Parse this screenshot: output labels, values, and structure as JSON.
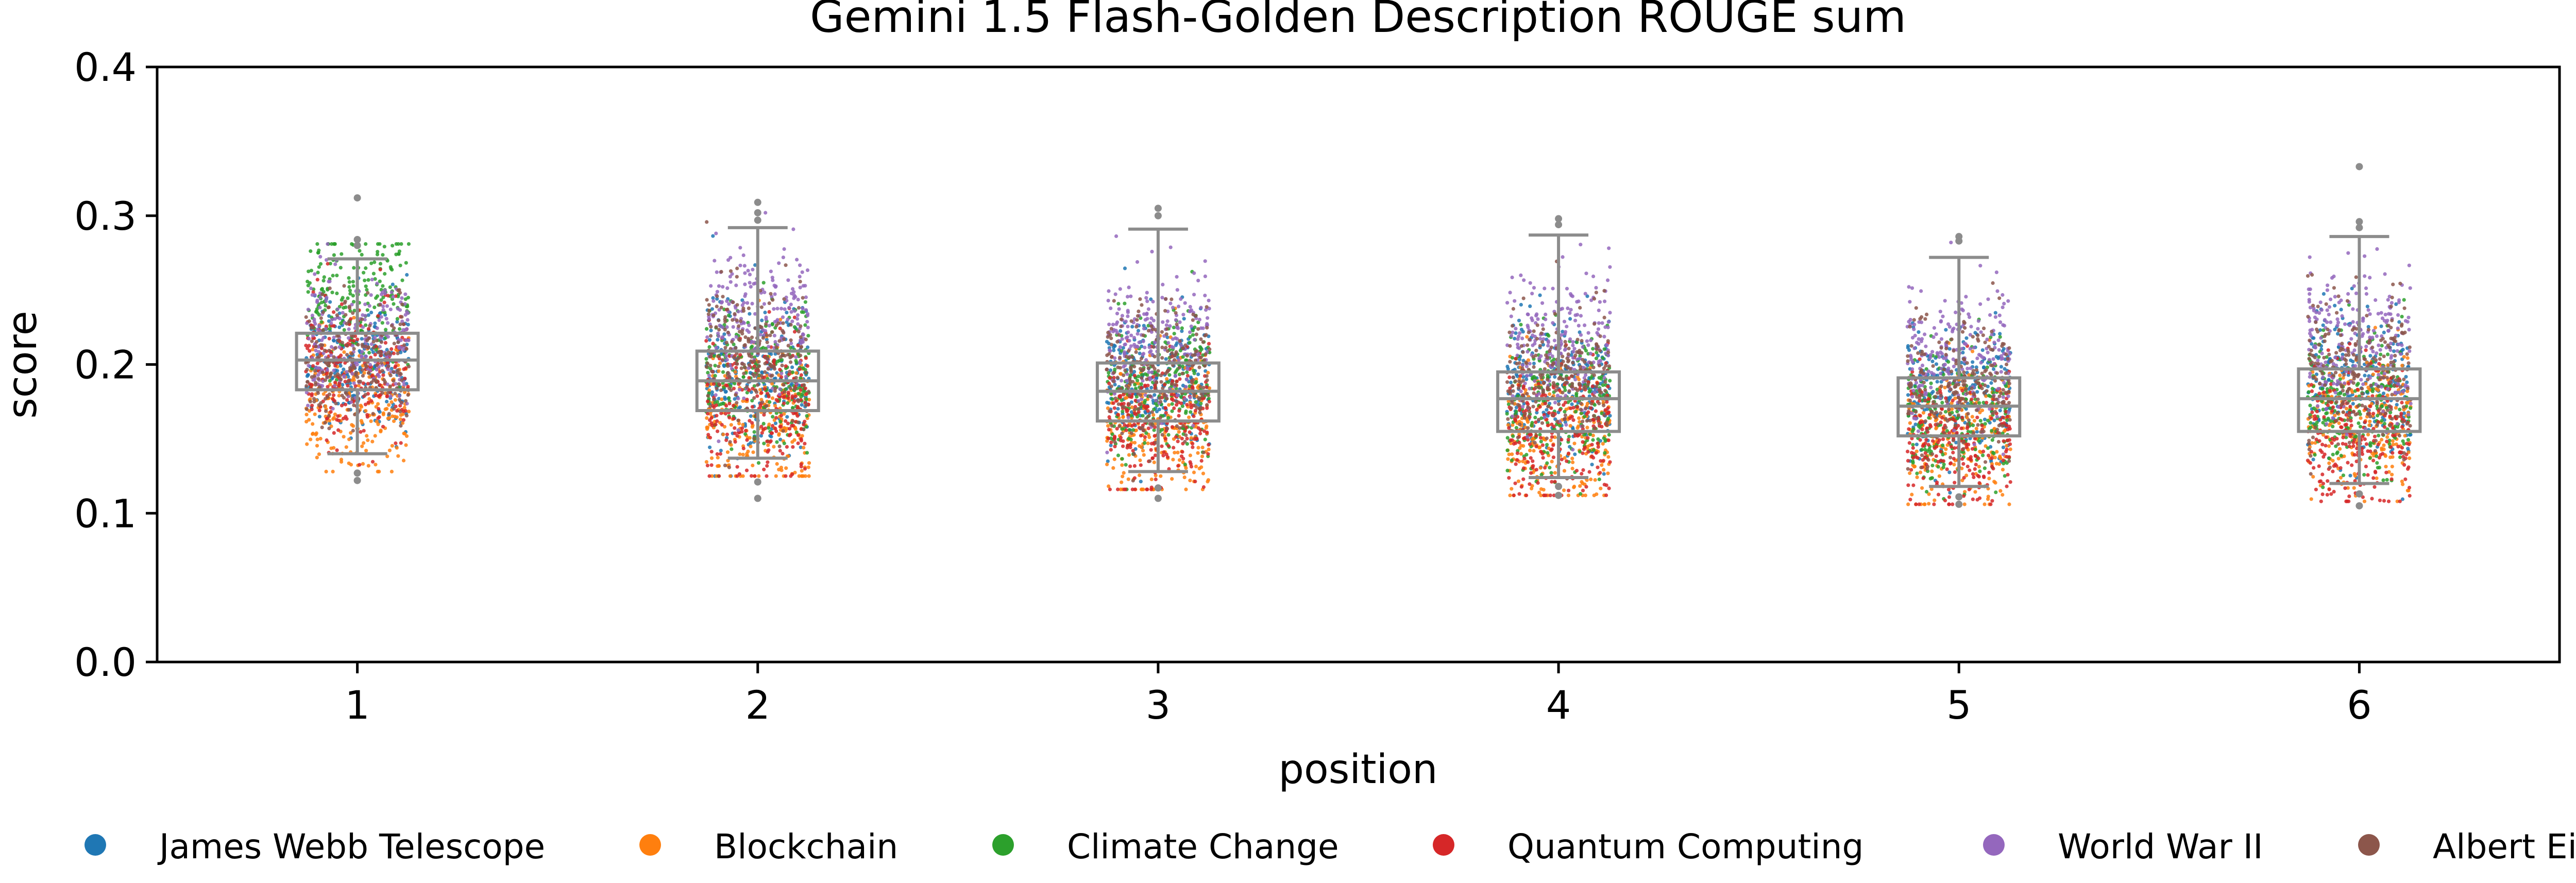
{
  "chart_data": {
    "type": "box-strip",
    "title": "Gemini 1.5 Flash-Golden Description ROUGE sum",
    "xlabel": "position",
    "ylabel": "score",
    "ylim": [
      0.0,
      0.4
    ],
    "yticks": [
      "0.0",
      "0.1",
      "0.2",
      "0.3",
      "0.4"
    ],
    "categories": [
      "1",
      "2",
      "3",
      "4",
      "5",
      "6"
    ],
    "grid": false,
    "legend_position": "bottom",
    "boxes": [
      {
        "position": "1",
        "whisker_low": 0.14,
        "q1": 0.183,
        "median": 0.203,
        "q3": 0.221,
        "whisker_high": 0.271,
        "outliers": [
          0.312,
          0.284,
          0.28,
          0.127,
          0.122
        ]
      },
      {
        "position": "2",
        "whisker_low": 0.137,
        "q1": 0.169,
        "median": 0.189,
        "q3": 0.209,
        "whisker_high": 0.292,
        "outliers": [
          0.309,
          0.302,
          0.297,
          0.121,
          0.11
        ]
      },
      {
        "position": "3",
        "whisker_low": 0.128,
        "q1": 0.162,
        "median": 0.182,
        "q3": 0.201,
        "whisker_high": 0.291,
        "outliers": [
          0.305,
          0.3,
          0.117,
          0.11
        ]
      },
      {
        "position": "4",
        "whisker_low": 0.124,
        "q1": 0.155,
        "median": 0.177,
        "q3": 0.195,
        "whisker_high": 0.287,
        "outliers": [
          0.298,
          0.294,
          0.118,
          0.112
        ]
      },
      {
        "position": "5",
        "whisker_low": 0.118,
        "q1": 0.152,
        "median": 0.172,
        "q3": 0.191,
        "whisker_high": 0.272,
        "outliers": [
          0.286,
          0.283,
          0.111,
          0.106
        ]
      },
      {
        "position": "6",
        "whisker_low": 0.12,
        "q1": 0.155,
        "median": 0.177,
        "q3": 0.197,
        "whisker_high": 0.286,
        "outliers": [
          0.333,
          0.296,
          0.292,
          0.113,
          0.105
        ]
      }
    ],
    "series": [
      {
        "name": "James Webb Telescope",
        "color": "#1f77b4",
        "centers": [
          0.2,
          0.195,
          0.188,
          0.182,
          0.18,
          0.185
        ]
      },
      {
        "name": "Blockchain",
        "color": "#ff7f0e",
        "centers": [
          0.172,
          0.165,
          0.158,
          0.15,
          0.15,
          0.16
        ]
      },
      {
        "name": "Climate Change",
        "color": "#2ca02c",
        "centers": [
          0.245,
          0.195,
          0.185,
          0.175,
          0.165,
          0.175
        ]
      },
      {
        "name": "Quantum Computing",
        "color": "#d62728",
        "centers": [
          0.195,
          0.17,
          0.16,
          0.155,
          0.15,
          0.15
        ]
      },
      {
        "name": "World War II",
        "color": "#9467bd",
        "centers": [
          0.215,
          0.228,
          0.22,
          0.215,
          0.205,
          0.215
        ]
      },
      {
        "name": "Albert Einstein",
        "color": "#8c564b",
        "centers": [
          0.2,
          0.205,
          0.195,
          0.19,
          0.185,
          0.195
        ]
      }
    ]
  }
}
